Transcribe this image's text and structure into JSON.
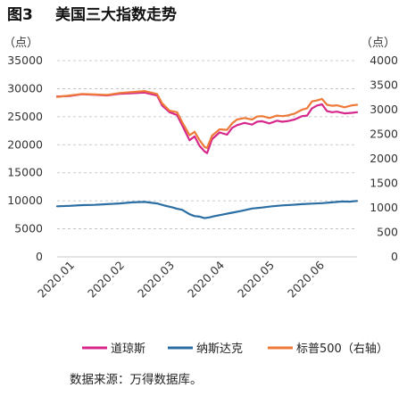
{
  "figure": {
    "number": "图3",
    "title": "美国三大指数走势",
    "source": "数据来源：万得数据库。"
  },
  "chart_data": {
    "type": "line",
    "left_unit": "（点）",
    "right_unit": "（点）",
    "left_axis": {
      "ylim": [
        0,
        35000
      ],
      "ticks": [
        "0",
        "5000",
        "10000",
        "15000",
        "20000",
        "25000",
        "30000",
        "35000"
      ]
    },
    "right_axis": {
      "ylim": [
        0,
        4000
      ],
      "ticks": [
        "0",
        "500",
        "1000",
        "1500",
        "2000",
        "2500",
        "3000",
        "3500",
        "4000"
      ]
    },
    "x_ticks": [
      "2020.01",
      "2020.02",
      "2020.03",
      "2020.04",
      "2020.05",
      "2020.06"
    ],
    "x_range": [
      0,
      120
    ],
    "grid": "horizontal-dashed",
    "legend_position": "bottom",
    "series": [
      {
        "name": "道琼斯",
        "axis": "left",
        "color": "#d6278a",
        "x": [
          0,
          5,
          10,
          15,
          20,
          25,
          30,
          35,
          40,
          42,
          45,
          48,
          50,
          53,
          55,
          57,
          59,
          60,
          62,
          65,
          68,
          70,
          72,
          75,
          78,
          80,
          82,
          85,
          88,
          90,
          92,
          95,
          98,
          100,
          102,
          104,
          106,
          108,
          110,
          112,
          115,
          118,
          120
        ],
        "values": [
          28600,
          28700,
          29000,
          28900,
          28800,
          29100,
          29200,
          29300,
          28800,
          27000,
          25800,
          25300,
          23500,
          20800,
          21500,
          19800,
          18800,
          18500,
          21000,
          22200,
          21800,
          23000,
          23500,
          23900,
          23600,
          24100,
          24200,
          23800,
          24300,
          24100,
          24200,
          24500,
          25100,
          25200,
          26500,
          27000,
          27200,
          26000,
          25800,
          25900,
          25600,
          25700,
          25800
        ]
      },
      {
        "name": "纳斯达克",
        "axis": "right",
        "color": "#2b6ea3",
        "x": [
          0,
          5,
          10,
          15,
          20,
          25,
          30,
          35,
          40,
          43,
          46,
          48,
          50,
          53,
          55,
          57,
          59,
          61,
          63,
          66,
          70,
          74,
          78,
          82,
          86,
          90,
          94,
          98,
          102,
          106,
          110,
          114,
          117,
          120
        ],
        "values": [
          1030,
          1040,
          1055,
          1060,
          1075,
          1090,
          1110,
          1120,
          1090,
          1045,
          1010,
          980,
          960,
          870,
          830,
          820,
          790,
          805,
          830,
          860,
          900,
          940,
          985,
          1005,
          1030,
          1050,
          1060,
          1075,
          1085,
          1095,
          1110,
          1130,
          1125,
          1140
        ]
      },
      {
        "name": "标普500（右轴）",
        "axis": "right",
        "color": "#ee7a3a",
        "x": [
          0,
          5,
          10,
          15,
          20,
          25,
          30,
          35,
          40,
          42,
          45,
          48,
          50,
          53,
          55,
          57,
          59,
          60,
          62,
          65,
          68,
          70,
          72,
          75,
          78,
          80,
          82,
          85,
          88,
          90,
          92,
          95,
          98,
          100,
          102,
          104,
          106,
          108,
          110,
          112,
          115,
          118,
          120
        ],
        "values": [
          3260,
          3290,
          3320,
          3310,
          3300,
          3340,
          3360,
          3380,
          3320,
          3130,
          2980,
          2950,
          2750,
          2480,
          2550,
          2380,
          2240,
          2220,
          2470,
          2600,
          2590,
          2720,
          2800,
          2830,
          2800,
          2860,
          2870,
          2830,
          2880,
          2870,
          2880,
          2920,
          3000,
          3030,
          3170,
          3190,
          3220,
          3100,
          3080,
          3090,
          3050,
          3090,
          3100
        ]
      }
    ]
  }
}
